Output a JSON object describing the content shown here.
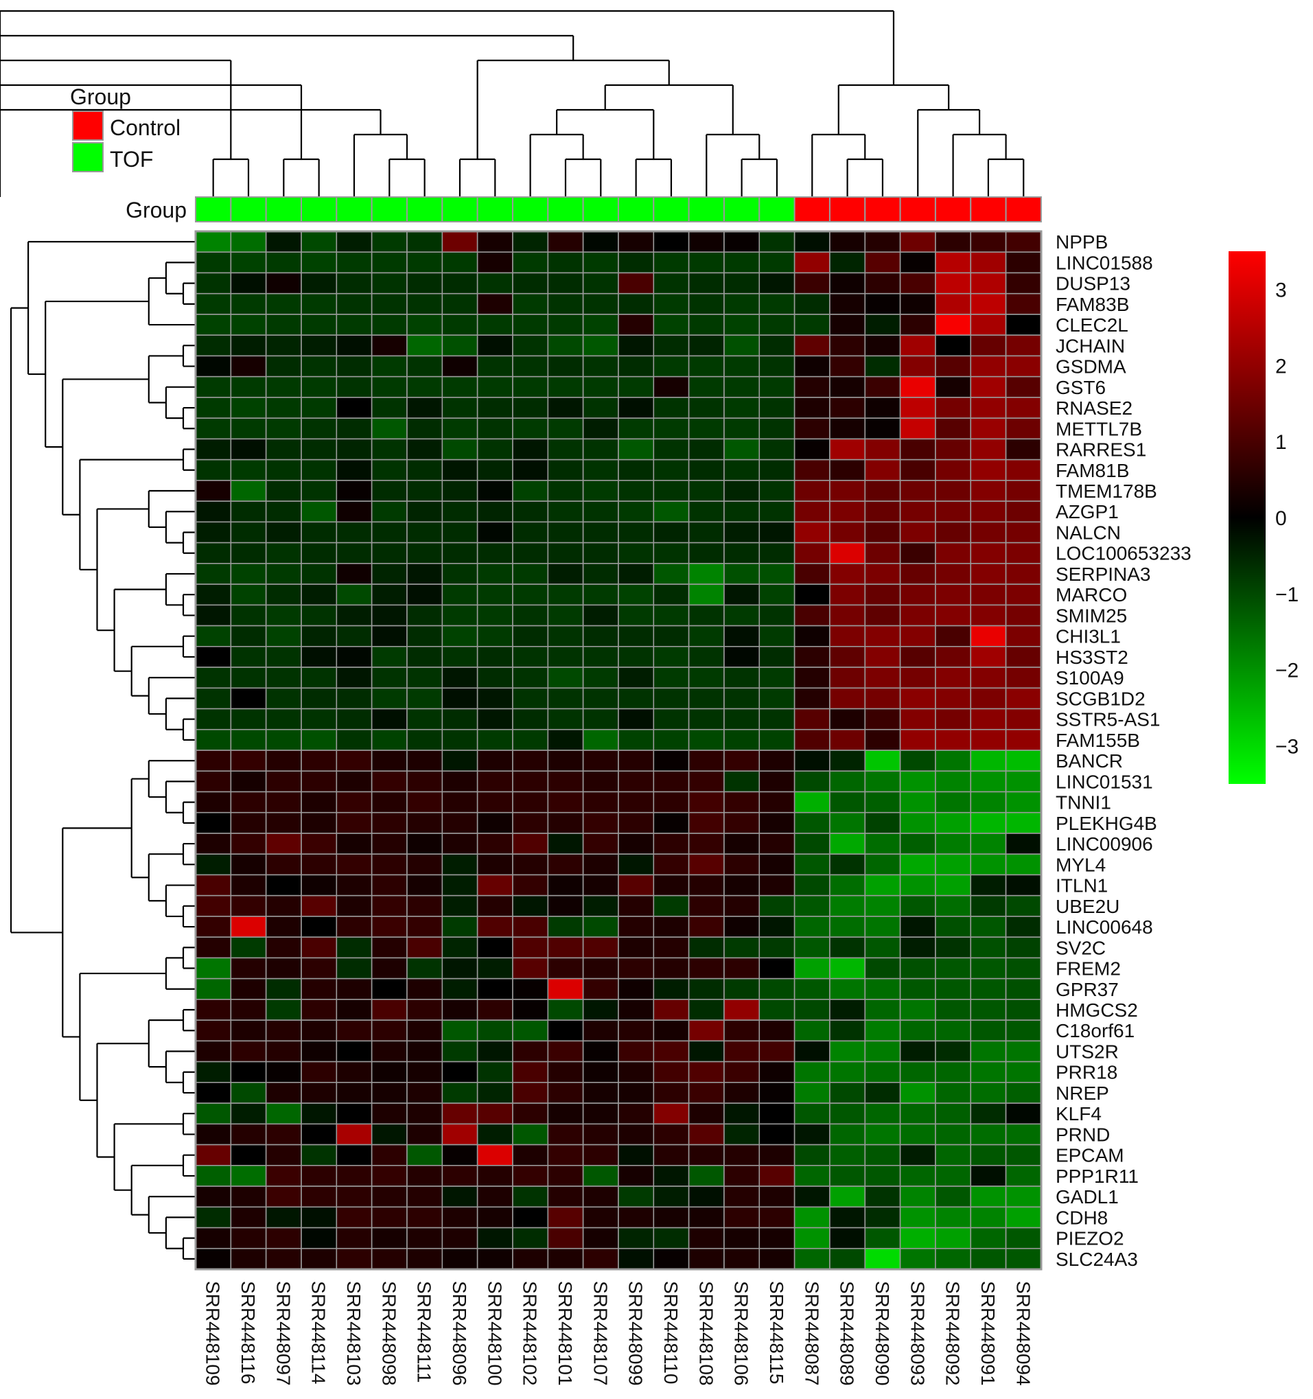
{
  "chart_data": {
    "type": "heatmap",
    "group_legend": {
      "title": "Group",
      "entries": [
        {
          "label": "Control",
          "color": "#ff0000"
        },
        {
          "label": "TOF",
          "color": "#00ff00"
        }
      ]
    },
    "annotation_row_label": "Group",
    "samples": [
      "SRR448109",
      "SRR448116",
      "SRR448097",
      "SRR448114",
      "SRR448103",
      "SRR448098",
      "SRR448111",
      "SRR448096",
      "SRR448100",
      "SRR448102",
      "SRR448101",
      "SRR448107",
      "SRR448099",
      "SRR448110",
      "SRR448108",
      "SRR448106",
      "SRR448115",
      "SRR448087",
      "SRR448089",
      "SRR448090",
      "SRR448093",
      "SRR448092",
      "SRR448091",
      "SRR448094"
    ],
    "sample_groups": [
      "TOF",
      "TOF",
      "TOF",
      "TOF",
      "TOF",
      "TOF",
      "TOF",
      "TOF",
      "TOF",
      "TOF",
      "TOF",
      "TOF",
      "TOF",
      "TOF",
      "TOF",
      "TOF",
      "TOF",
      "Control",
      "Control",
      "Control",
      "Control",
      "Control",
      "Control",
      "Control"
    ],
    "genes": [
      "NPPB",
      "LINC01588",
      "DUSP13",
      "FAM83B",
      "CLEC2L",
      "JCHAIN",
      "GSDMA",
      "GST6",
      "RNASE2",
      "METTL7B",
      "RARRES1",
      "FAM81B",
      "TMEM178B",
      "AZGP1",
      "NALCN",
      "LOC100653233",
      "SERPINA3",
      "MARCO",
      "SMIM25",
      "CHI3L1",
      "HS3ST2",
      "S100A9",
      "SCGB1D2",
      "SSTR5-AS1",
      "FAM155B",
      "BANCR",
      "LINC01531",
      "TNNI1",
      "PLEKHG4B",
      "LINC00906",
      "MYL4",
      "ITLN1",
      "UBE2U",
      "LINC00648",
      "SV2C",
      "FREM2",
      "GPR37",
      "HMGCS2",
      "C18orf61",
      "UTS2R",
      "PRR18",
      "NREP",
      "KLF4",
      "PRND",
      "EPCAM",
      "PPP1R11",
      "GADL1",
      "CDH8",
      "PIEZO2",
      "SLC24A3"
    ],
    "values": [
      [
        -1.8,
        -1.5,
        -0.3,
        -1.0,
        -0.4,
        -0.8,
        -0.7,
        1.5,
        0.3,
        -0.5,
        0.5,
        -0.1,
        0.3,
        0.0,
        0.2,
        0.1,
        -0.7,
        -0.2,
        0.3,
        0.5,
        1.5,
        0.6,
        0.8,
        0.9
      ],
      [
        -0.8,
        -0.9,
        -0.8,
        -0.9,
        -0.8,
        -0.8,
        -0.8,
        -0.8,
        0.3,
        -0.8,
        -0.7,
        -0.8,
        -0.6,
        -0.8,
        -0.8,
        -0.8,
        -0.8,
        2.0,
        -0.5,
        1.2,
        0.1,
        2.5,
        2.2,
        0.6
      ],
      [
        -0.7,
        -0.2,
        0.2,
        -0.4,
        -0.6,
        -0.7,
        -0.6,
        -0.6,
        -0.7,
        -0.6,
        -0.6,
        -0.7,
        1.0,
        -0.7,
        -0.6,
        -0.6,
        -0.3,
        0.8,
        0.2,
        0.6,
        1.0,
        2.6,
        2.4,
        0.7
      ],
      [
        -0.8,
        -0.8,
        -0.8,
        -0.8,
        -0.7,
        -0.7,
        -0.7,
        -0.7,
        0.4,
        -0.8,
        -0.7,
        -0.7,
        -0.6,
        -0.8,
        -0.7,
        -0.8,
        -0.8,
        -0.6,
        0.3,
        0.1,
        0.2,
        2.4,
        2.6,
        1.0
      ],
      [
        -0.9,
        -0.9,
        -0.8,
        -0.8,
        -0.8,
        -0.8,
        -0.9,
        -0.8,
        -0.8,
        -0.8,
        -0.8,
        -0.9,
        0.5,
        -0.9,
        -0.8,
        -0.9,
        -0.8,
        -0.8,
        0.3,
        -0.4,
        0.6,
        3.4,
        2.3,
        0.0
      ],
      [
        -0.6,
        -0.4,
        -0.5,
        -0.4,
        -0.2,
        0.3,
        -1.4,
        -1.1,
        -0.2,
        -0.7,
        -1.0,
        -1.2,
        -0.3,
        -0.6,
        -0.5,
        -1.1,
        -0.6,
        1.3,
        0.6,
        0.3,
        2.2,
        0.0,
        1.4,
        1.6
      ],
      [
        -0.1,
        0.3,
        -0.6,
        -0.7,
        -0.6,
        -0.8,
        -0.7,
        0.2,
        -0.7,
        -0.7,
        -0.6,
        -0.7,
        -0.6,
        -0.8,
        -0.8,
        -0.8,
        -0.7,
        0.2,
        0.7,
        -0.6,
        1.8,
        1.2,
        2.0,
        1.9
      ],
      [
        -0.8,
        -0.8,
        -0.8,
        -0.8,
        -0.7,
        -0.8,
        -0.8,
        -0.8,
        -0.8,
        -0.8,
        -0.8,
        -0.8,
        -0.8,
        0.3,
        -0.8,
        -0.8,
        -0.8,
        0.5,
        0.3,
        0.8,
        3.2,
        0.3,
        2.2,
        1.2
      ],
      [
        -0.8,
        -0.9,
        -0.8,
        -0.8,
        0.0,
        -0.7,
        -0.3,
        -0.7,
        -0.6,
        -0.6,
        -0.3,
        -0.7,
        -0.2,
        -0.7,
        -0.7,
        -0.8,
        -0.7,
        0.4,
        0.6,
        0.2,
        2.6,
        1.6,
        2.0,
        1.8
      ],
      [
        -0.8,
        -0.8,
        -0.8,
        -0.7,
        -0.6,
        -1.2,
        -0.6,
        -0.8,
        -0.7,
        -0.8,
        -0.8,
        -0.4,
        -0.8,
        -0.8,
        -0.8,
        -0.8,
        -0.7,
        0.6,
        0.3,
        0.1,
        2.7,
        1.2,
        2.1,
        1.5
      ],
      [
        -0.4,
        -0.2,
        -0.6,
        -0.6,
        -0.5,
        -0.7,
        -0.4,
        -1.0,
        -0.7,
        -0.3,
        -0.7,
        -0.7,
        -1.2,
        -0.7,
        -0.6,
        -1.2,
        -0.7,
        0.1,
        2.2,
        1.8,
        1.0,
        1.4,
        2.0,
        0.6
      ],
      [
        -0.7,
        -0.8,
        -0.7,
        -0.7,
        -0.2,
        -0.7,
        -0.6,
        -0.3,
        -0.5,
        -0.2,
        -0.6,
        -0.7,
        -0.6,
        -0.7,
        -0.6,
        -0.7,
        -0.6,
        1.0,
        0.6,
        1.8,
        1.0,
        1.6,
        2.0,
        1.8
      ],
      [
        0.3,
        -1.4,
        -0.6,
        -0.7,
        0.1,
        -0.6,
        -0.6,
        -0.5,
        -0.1,
        -0.9,
        -0.7,
        -0.8,
        -0.7,
        -0.7,
        -0.7,
        -0.5,
        -0.7,
        1.5,
        1.6,
        1.3,
        1.5,
        1.5,
        1.8,
        1.6
      ],
      [
        -0.3,
        -0.6,
        -0.6,
        -1.2,
        0.2,
        -0.8,
        -0.5,
        -0.6,
        -0.5,
        -0.6,
        -0.7,
        -0.7,
        -0.8,
        -1.2,
        -0.7,
        -0.7,
        -0.7,
        1.6,
        1.7,
        1.4,
        1.6,
        1.6,
        1.7,
        1.5
      ],
      [
        -0.4,
        -0.6,
        -0.4,
        -0.6,
        -0.6,
        -0.6,
        -0.6,
        -0.6,
        -0.1,
        -0.6,
        -0.6,
        -0.6,
        -0.6,
        -0.5,
        -0.6,
        -0.4,
        -0.3,
        2.0,
        1.6,
        1.2,
        1.7,
        1.4,
        1.6,
        1.6
      ],
      [
        -0.6,
        -0.6,
        -0.7,
        -0.6,
        -0.6,
        -0.6,
        -0.6,
        -0.6,
        -0.6,
        -0.6,
        -0.6,
        -0.6,
        -0.7,
        -0.7,
        -0.6,
        -0.6,
        -0.6,
        1.6,
        3.0,
        1.5,
        0.8,
        1.7,
        1.8,
        1.7
      ],
      [
        -0.8,
        -0.9,
        -0.8,
        -0.7,
        0.2,
        -0.5,
        -0.3,
        -0.7,
        -0.8,
        -0.8,
        -0.4,
        -0.6,
        -0.4,
        -1.2,
        -1.8,
        -1.1,
        -1.1,
        1.0,
        1.8,
        1.7,
        1.4,
        1.6,
        1.8,
        1.7
      ],
      [
        -0.4,
        -0.9,
        -0.6,
        -0.4,
        -1.0,
        -0.4,
        -0.2,
        -0.8,
        -0.8,
        -0.8,
        -0.8,
        -0.8,
        -0.9,
        -0.6,
        -1.8,
        -0.3,
        -0.9,
        0.0,
        1.7,
        1.4,
        1.6,
        1.7,
        1.7,
        1.7
      ],
      [
        -0.3,
        -0.7,
        -0.8,
        -0.7,
        -0.4,
        -0.3,
        -0.6,
        -0.8,
        -0.8,
        -0.7,
        -0.8,
        -0.4,
        -0.8,
        -0.8,
        -0.7,
        -0.8,
        -0.7,
        1.0,
        1.6,
        1.3,
        1.7,
        1.8,
        1.8,
        1.6
      ],
      [
        -0.9,
        -0.6,
        -0.9,
        -0.5,
        -0.6,
        -0.2,
        -0.6,
        -0.9,
        -0.8,
        -0.6,
        -0.7,
        -0.6,
        -0.6,
        -0.6,
        -0.8,
        -0.2,
        -0.8,
        0.2,
        1.7,
        1.8,
        1.8,
        1.0,
        3.2,
        1.7
      ],
      [
        0.0,
        -0.7,
        -0.7,
        -0.2,
        -0.1,
        -0.8,
        -0.6,
        -0.7,
        -0.6,
        -0.7,
        -0.7,
        -0.7,
        -0.7,
        -0.8,
        -0.7,
        -0.1,
        -0.6,
        0.6,
        1.3,
        1.8,
        1.2,
        1.5,
        2.2,
        1.4
      ],
      [
        -0.7,
        -0.7,
        -0.7,
        -0.7,
        -0.3,
        -0.7,
        -0.7,
        -0.3,
        -0.6,
        -0.7,
        -1.0,
        -0.8,
        -0.4,
        -0.8,
        -0.8,
        -0.7,
        -0.8,
        0.5,
        1.5,
        1.7,
        1.6,
        1.8,
        1.8,
        1.6
      ],
      [
        -0.7,
        0.0,
        -0.7,
        -0.6,
        -0.6,
        -0.8,
        -0.8,
        -0.2,
        -0.3,
        -0.7,
        -0.7,
        -0.7,
        -0.7,
        -0.7,
        -0.7,
        -0.7,
        -0.8,
        0.5,
        1.6,
        1.6,
        1.9,
        1.8,
        1.7,
        1.9
      ],
      [
        -0.7,
        -0.7,
        -0.7,
        -0.7,
        -0.6,
        -0.2,
        -0.7,
        -0.6,
        -0.3,
        -0.6,
        -0.7,
        -0.7,
        -0.2,
        -0.7,
        -0.7,
        -0.7,
        -0.7,
        1.2,
        0.4,
        0.8,
        1.8,
        1.6,
        1.9,
        1.8
      ],
      [
        -1.0,
        -1.0,
        -1.0,
        -1.1,
        -0.7,
        -0.9,
        -0.7,
        -0.7,
        -0.8,
        -0.8,
        -0.3,
        -1.4,
        -0.9,
        -0.9,
        -1.0,
        -0.9,
        -0.9,
        1.1,
        1.5,
        0.6,
        2.0,
        2.0,
        2.0,
        2.0
      ],
      [
        0.6,
        0.7,
        0.5,
        0.6,
        0.7,
        0.4,
        0.4,
        -0.3,
        0.4,
        0.5,
        0.4,
        0.5,
        0.5,
        0.1,
        0.6,
        0.7,
        0.4,
        -0.2,
        -0.5,
        -2.7,
        -1.0,
        -1.6,
        -2.5,
        -2.6
      ],
      [
        0.6,
        0.3,
        0.6,
        0.6,
        0.4,
        0.7,
        0.6,
        0.4,
        0.6,
        0.6,
        0.6,
        0.5,
        0.6,
        0.6,
        0.7,
        -0.7,
        0.4,
        -1.0,
        -1.4,
        -1.6,
        -2.0,
        -1.8,
        -2.0,
        -2.0
      ],
      [
        0.4,
        0.6,
        0.6,
        0.4,
        0.7,
        0.5,
        0.7,
        0.5,
        0.6,
        0.6,
        0.7,
        0.6,
        0.6,
        0.6,
        0.9,
        0.7,
        0.5,
        -2.4,
        -1.2,
        -1.3,
        -2.0,
        -1.6,
        -1.8,
        -2.0
      ],
      [
        0.0,
        0.5,
        0.5,
        0.4,
        0.7,
        0.6,
        0.5,
        0.5,
        0.2,
        0.6,
        0.5,
        0.7,
        0.6,
        0.1,
        0.9,
        0.7,
        0.3,
        -1.2,
        -1.6,
        -0.9,
        -2.0,
        -2.2,
        -2.5,
        -2.5
      ],
      [
        0.4,
        0.7,
        1.3,
        0.8,
        0.3,
        0.5,
        0.2,
        0.4,
        0.6,
        1.1,
        -0.3,
        0.7,
        0.3,
        0.6,
        0.7,
        0.3,
        0.5,
        -1.0,
        -2.3,
        -1.5,
        -1.3,
        -1.7,
        -1.8,
        -0.2
      ],
      [
        -0.4,
        0.3,
        0.6,
        0.6,
        0.7,
        0.6,
        0.5,
        -0.4,
        0.4,
        0.5,
        0.6,
        0.4,
        -0.3,
        0.7,
        1.2,
        0.6,
        0.3,
        -1.2,
        -0.7,
        -1.4,
        -2.3,
        -2.2,
        -2.0,
        -2.0
      ],
      [
        1.0,
        0.4,
        0.0,
        0.2,
        0.4,
        0.6,
        0.3,
        -0.4,
        1.4,
        0.7,
        0.2,
        0.3,
        1.2,
        0.4,
        0.5,
        0.3,
        0.4,
        -1.0,
        -1.5,
        -2.2,
        -2.0,
        -2.2,
        -0.4,
        -0.2
      ],
      [
        0.9,
        0.7,
        0.5,
        1.2,
        0.4,
        0.7,
        0.6,
        -0.4,
        0.5,
        -0.3,
        0.2,
        -0.4,
        0.5,
        -0.8,
        0.6,
        0.5,
        -0.9,
        -1.2,
        -1.7,
        -1.8,
        -1.2,
        -1.5,
        -0.8,
        -1.0
      ],
      [
        0.7,
        3.0,
        0.4,
        0.0,
        0.6,
        0.8,
        0.7,
        -0.8,
        1.1,
        1.0,
        -0.8,
        -1.0,
        0.5,
        0.4,
        0.8,
        0.2,
        -0.3,
        -1.4,
        -1.5,
        -1.6,
        -0.3,
        -1.1,
        -1.2,
        -0.6
      ],
      [
        0.5,
        -0.8,
        0.5,
        1.0,
        -0.6,
        0.5,
        1.0,
        -0.5,
        0.0,
        1.1,
        1.1,
        1.1,
        0.4,
        0.5,
        -0.6,
        -0.8,
        -0.8,
        -1.2,
        -0.7,
        -1.2,
        -0.4,
        -0.7,
        -1.1,
        -0.9
      ],
      [
        -1.6,
        0.5,
        0.4,
        0.6,
        -0.6,
        0.4,
        -0.7,
        -0.3,
        -0.4,
        1.2,
        0.6,
        0.5,
        0.6,
        0.5,
        0.6,
        0.6,
        0.0,
        -2.2,
        -2.5,
        -1.0,
        -1.1,
        -1.2,
        -1.2,
        -1.1
      ],
      [
        -1.4,
        0.4,
        -0.6,
        0.5,
        0.4,
        0.0,
        0.4,
        -0.4,
        0.0,
        0.1,
        3.0,
        0.7,
        0.2,
        -0.4,
        -0.6,
        -0.8,
        -1.0,
        -1.2,
        -1.6,
        -1.5,
        -1.2,
        -1.2,
        -1.2,
        -1.1
      ],
      [
        0.6,
        0.5,
        -0.8,
        0.6,
        0.3,
        1.0,
        0.6,
        0.3,
        0.6,
        0.1,
        -1.0,
        -0.3,
        0.3,
        1.4,
        -0.6,
        2.0,
        -1.0,
        -1.0,
        -0.4,
        -1.4,
        -1.6,
        -1.2,
        -1.2,
        -1.1
      ],
      [
        0.6,
        0.4,
        0.5,
        0.4,
        0.6,
        0.6,
        0.4,
        -1.2,
        -1.0,
        -1.2,
        0.0,
        0.4,
        0.5,
        0.3,
        1.6,
        0.6,
        0.4,
        -1.4,
        -0.7,
        -1.7,
        -1.4,
        -1.4,
        -1.2,
        -1.2
      ],
      [
        0.4,
        0.6,
        0.5,
        0.2,
        0.0,
        0.4,
        0.3,
        -0.8,
        -0.3,
        0.6,
        0.8,
        0.1,
        0.8,
        1.0,
        -0.3,
        0.9,
        0.9,
        -0.2,
        -1.8,
        -1.7,
        -0.4,
        -0.6,
        -1.6,
        -1.6
      ],
      [
        -0.4,
        0.0,
        0.1,
        0.6,
        0.4,
        0.2,
        0.3,
        0.0,
        -0.7,
        1.0,
        0.5,
        0.2,
        0.4,
        0.9,
        1.1,
        0.8,
        0.2,
        -1.6,
        -1.6,
        -1.5,
        -1.4,
        -1.4,
        -1.6,
        -1.6
      ],
      [
        0.0,
        -1.0,
        0.4,
        0.4,
        0.3,
        0.3,
        0.4,
        -0.8,
        -0.5,
        1.0,
        0.6,
        0.3,
        0.3,
        0.6,
        0.8,
        0.4,
        0.1,
        -1.7,
        -1.0,
        -0.6,
        -2.0,
        -1.4,
        -1.5,
        -1.3
      ],
      [
        -1.2,
        -0.4,
        -1.4,
        -0.3,
        0.0,
        0.4,
        0.4,
        1.4,
        1.2,
        0.6,
        0.3,
        0.3,
        0.5,
        1.8,
        0.4,
        -0.3,
        0.0,
        -1.2,
        -1.2,
        -1.4,
        -1.4,
        -1.3,
        -0.6,
        -0.1
      ],
      [
        0.3,
        0.5,
        0.6,
        0.0,
        2.3,
        -0.3,
        0.4,
        2.2,
        -0.4,
        -1.2,
        0.6,
        0.5,
        0.4,
        0.6,
        1.2,
        -0.5,
        0.0,
        -0.3,
        -1.4,
        -1.6,
        -1.5,
        -1.4,
        -1.5,
        -1.5
      ],
      [
        1.4,
        0.0,
        0.5,
        -0.7,
        0.0,
        0.6,
        -1.2,
        0.1,
        3.0,
        0.4,
        0.7,
        0.6,
        -0.2,
        0.5,
        0.5,
        0.5,
        0.4,
        -1.0,
        -1.3,
        -1.2,
        -0.4,
        -1.4,
        -1.2,
        -1.2
      ],
      [
        -1.3,
        -1.5,
        0.8,
        0.6,
        0.6,
        0.7,
        0.5,
        0.6,
        0.5,
        0.7,
        0.6,
        -1.2,
        0.3,
        -0.3,
        -1.2,
        0.6,
        1.2,
        -1.4,
        -1.2,
        -1.2,
        -1.4,
        -1.4,
        -0.2,
        -1.4
      ],
      [
        0.3,
        0.4,
        0.8,
        0.6,
        0.6,
        0.5,
        0.5,
        -0.3,
        0.4,
        -0.7,
        0.5,
        0.4,
        -0.8,
        -0.4,
        -0.2,
        0.5,
        0.4,
        -0.3,
        -2.2,
        -0.7,
        -1.8,
        -1.2,
        -2.0,
        -2.0
      ],
      [
        -0.6,
        0.4,
        -0.3,
        -0.2,
        0.7,
        0.6,
        0.6,
        0.4,
        0.3,
        0.0,
        1.2,
        0.4,
        0.4,
        0.3,
        0.3,
        0.6,
        0.6,
        -2.0,
        -0.3,
        -0.6,
        -2.0,
        -1.8,
        -1.8,
        -2.2
      ],
      [
        0.3,
        0.5,
        0.6,
        -0.1,
        0.5,
        0.3,
        0.4,
        0.4,
        -0.3,
        -0.6,
        1.0,
        0.3,
        -0.5,
        -0.6,
        0.4,
        0.3,
        0.3,
        -2.0,
        -0.2,
        -1.2,
        -2.4,
        -2.2,
        -1.4,
        -1.2
      ],
      [
        0.1,
        0.4,
        0.5,
        0.4,
        0.6,
        0.5,
        0.4,
        0.2,
        0.2,
        0.4,
        0.4,
        0.6,
        -0.2,
        0.1,
        0.4,
        0.4,
        0.3,
        -1.4,
        -1.0,
        -3.0,
        -1.6,
        -1.4,
        -1.2,
        -1.2
      ]
    ],
    "colorbar": {
      "min": -3.5,
      "max": 3.5,
      "ticks": [
        3,
        2,
        1,
        0,
        -1,
        -2,
        -3
      ],
      "tick_labels": [
        "3",
        "2",
        "1",
        "0",
        "−1",
        "−2",
        "−3"
      ],
      "low_color": "#00ff00",
      "mid_color": "#000000",
      "high_color": "#ff0000"
    },
    "grid": true,
    "column_dendrogram": true,
    "row_dendrogram": true,
    "legend_placement": "top-left"
  }
}
